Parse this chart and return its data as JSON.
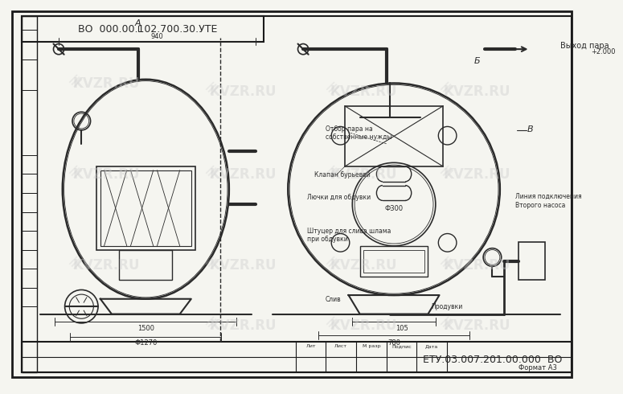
{
  "bg_color": "#f5f5f0",
  "line_color": "#2a2a2a",
  "light_line_color": "#555555",
  "dim_color": "#333333",
  "watermark_color": "#cccccc",
  "title_text": "ЕТУ.03.007.201.00.000  ВО",
  "format_text": "Формат А3",
  "top_title_text": "ВО  000.00.102.700.30.УТЕ",
  "view_A_label": "А",
  "view_B_label": "Б",
  "view_B2_label": "В",
  "annotation_steam": "Выход пара",
  "annotation_steam_val": "+2.000",
  "annotation_bleed": "Отбор пара на\nсобственные нужды",
  "annotation_hatch": "Клапан бурьевой",
  "annotation_door": "Лючки для обдувки",
  "annotation_nozzle": "Штуцер для слива шлама\nпри обдувки",
  "annotation_drain": "Слив",
  "annotation_blowdown": "Продувки",
  "annotation_pump_line": "Линия подключения\nВторого насоса",
  "dim_940": "940",
  "dim_1500": "1500",
  "dim_1270": "Ф1270",
  "dim_300": "Ф300",
  "dim_105": "105",
  "dim_780": "780",
  "watermark_texts": [
    "KVZR.RU",
    "KVZR.RU",
    "KVZR.RU"
  ],
  "border_color": "#1a1a1a",
  "table_color": "#1a1a1a"
}
